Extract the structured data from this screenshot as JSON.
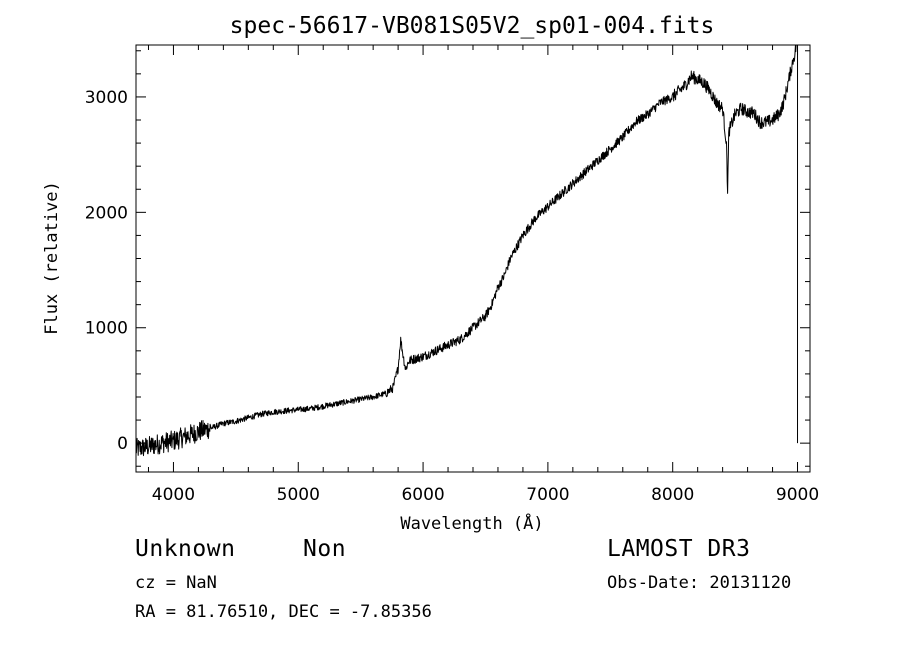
{
  "chart_data": {
    "type": "line",
    "title": "spec-56617-VB081S05V2_sp01-004.fits",
    "xlabel": "Wavelength (Å)",
    "ylabel": "Flux (relative)",
    "xlim": [
      3700,
      9100
    ],
    "ylim": [
      -250,
      3450
    ],
    "xticks": [
      4000,
      5000,
      6000,
      7000,
      8000,
      9000
    ],
    "yticks": [
      0,
      1000,
      2000,
      3000
    ],
    "series": [
      {
        "name": "flux",
        "x": [
          3700,
          3800,
          3900,
          4000,
          4100,
          4200,
          4300,
          4400,
          4500,
          4600,
          4700,
          4800,
          4900,
          5000,
          5100,
          5200,
          5300,
          5400,
          5500,
          5600,
          5700,
          5760,
          5800,
          5820,
          5840,
          5860,
          5880,
          5900,
          6000,
          6100,
          6200,
          6300,
          6400,
          6500,
          6550,
          6600,
          6650,
          6700,
          6800,
          6900,
          7000,
          7100,
          7200,
          7300,
          7400,
          7500,
          7600,
          7700,
          7800,
          7900,
          8000,
          8100,
          8150,
          8200,
          8250,
          8300,
          8350,
          8400,
          8430,
          8440,
          8450,
          8500,
          8550,
          8600,
          8650,
          8700,
          8750,
          8800,
          8850,
          8880,
          8900,
          8920,
          8940,
          8960,
          8980,
          8990
        ],
        "y": [
          -50,
          -30,
          0,
          20,
          60,
          100,
          130,
          170,
          190,
          220,
          250,
          270,
          280,
          290,
          300,
          320,
          340,
          360,
          380,
          400,
          430,
          480,
          650,
          900,
          760,
          640,
          700,
          720,
          750,
          800,
          850,
          900,
          1000,
          1100,
          1200,
          1350,
          1450,
          1600,
          1800,
          1950,
          2050,
          2150,
          2250,
          2350,
          2450,
          2550,
          2650,
          2780,
          2850,
          2950,
          3000,
          3100,
          3180,
          3150,
          3120,
          3050,
          2950,
          2900,
          2600,
          2200,
          2700,
          2850,
          2900,
          2870,
          2860,
          2780,
          2780,
          2800,
          2850,
          2920,
          3000,
          3100,
          3200,
          3300,
          3380,
          3450
        ]
      }
    ]
  },
  "labels": {
    "object_class": "Unknown",
    "object_subclass": "Non",
    "survey": "LAMOST DR3",
    "cz": "cz = NaN",
    "obs_date": "Obs-Date: 20131120",
    "radec": "RA =  81.76510, DEC =  -7.85356"
  }
}
